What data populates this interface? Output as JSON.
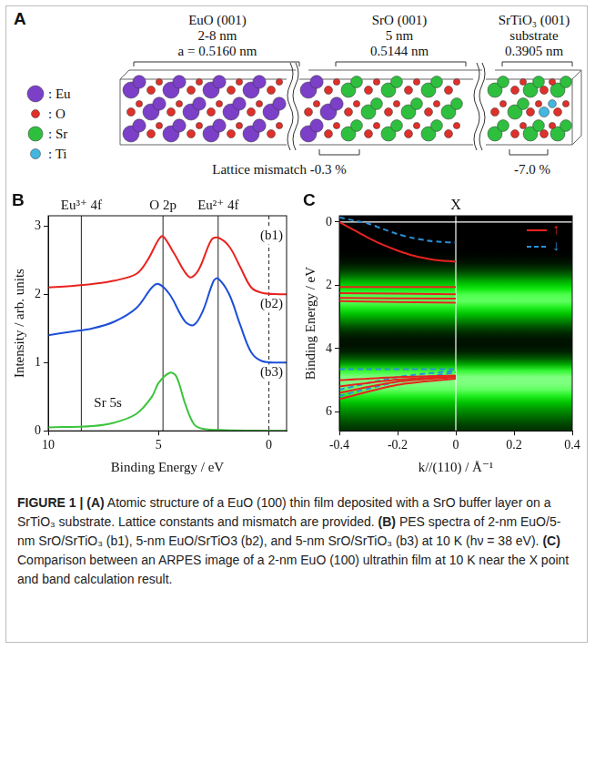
{
  "diagram": {
    "letter": "A",
    "layers": [
      {
        "name": "EuO (001)",
        "thickness": "2-8 nm",
        "lattice": "a = 0.5160 nm"
      },
      {
        "name": "SrO (001)",
        "thickness": "5 nm",
        "lattice": "0.5144 nm"
      },
      {
        "name": "SrTiO₃ (001)",
        "thickness": "substrate",
        "lattice": "0.3905 nm"
      }
    ],
    "atoms": [
      {
        "label": ": Eu",
        "color": "#7b3fc8"
      },
      {
        "label": ": O",
        "color": "#e0302a"
      },
      {
        "label": ": Sr",
        "color": "#2fbf3f"
      },
      {
        "label": ": Ti",
        "color": "#43b7e0"
      }
    ],
    "mismatch": [
      "Lattice mismatch -0.3 %",
      "-7.0 %"
    ]
  },
  "chart_data": [
    {
      "letter": "B",
      "type": "line",
      "x_label": "Binding Energy / eV",
      "y_label": "Intensity / arb. units",
      "xlim": [
        10,
        -0.8
      ],
      "xticks": [
        10,
        5,
        0
      ],
      "ylim": [
        0,
        3.15
      ],
      "yticks": [
        0,
        1,
        2,
        3
      ],
      "grid": false,
      "series": [
        {
          "name": "(b1)",
          "color": "#e8231f",
          "x": [
            10,
            9,
            8,
            7,
            6,
            5.5,
            5,
            4.8,
            4.3,
            3.6,
            3.2,
            2.6,
            2.3,
            1.8,
            1.3,
            0.8,
            0.3,
            -0.5,
            -0.8
          ],
          "values": [
            2.1,
            2.12,
            2.15,
            2.2,
            2.3,
            2.5,
            2.8,
            2.85,
            2.6,
            2.25,
            2.35,
            2.8,
            2.83,
            2.7,
            2.4,
            2.1,
            2.02,
            2.0,
            2.0
          ]
        },
        {
          "name": "(b2)",
          "color": "#1d4fd8",
          "x": [
            10,
            9,
            8,
            7,
            6,
            5.3,
            5,
            4.5,
            3.8,
            3.4,
            3,
            2.5,
            2.3,
            1.8,
            1.3,
            0.8,
            0.3,
            -0.5,
            -0.8
          ],
          "values": [
            1.4,
            1.45,
            1.5,
            1.6,
            1.8,
            2.1,
            2.15,
            2.0,
            1.6,
            1.55,
            1.75,
            2.2,
            2.23,
            2.0,
            1.55,
            1.15,
            1.02,
            1.0,
            1.0
          ]
        },
        {
          "name": "(b3)",
          "color": "#3cc43c",
          "x": [
            10,
            8,
            7,
            6,
            5.3,
            5,
            4.5,
            4.2,
            3.8,
            3.4,
            3,
            2,
            0,
            -0.8
          ],
          "values": [
            0.05,
            0.07,
            0.12,
            0.25,
            0.5,
            0.7,
            0.85,
            0.8,
            0.4,
            0.1,
            0.03,
            0.01,
            0,
            0
          ]
        }
      ],
      "vlines": [
        {
          "x": 8.5,
          "label": "Eu³⁺ 4f"
        },
        {
          "x": 4.8,
          "label": "O 2p"
        },
        {
          "x": 2.3,
          "label": "Eu²⁺ 4f"
        },
        {
          "x": 0,
          "line_style": "dashed"
        }
      ],
      "annotations": [
        {
          "text": "Sr 5s",
          "x": 7.3,
          "y": 0.4
        }
      ]
    },
    {
      "letter": "C",
      "type": "line",
      "title": "X",
      "x_label": "k//(110) / Å⁻¹",
      "y_label": "Binding Energy / eV",
      "xlim": [
        -0.4,
        0.4
      ],
      "xticks": [
        -0.4,
        -0.2,
        0,
        0.2,
        0.4
      ],
      "ylim": [
        6.6,
        -0.2
      ],
      "yticks": [
        0,
        2,
        4,
        6
      ],
      "grid": false,
      "legend": "upper right",
      "vlines": [
        0
      ],
      "hlines": [
        0
      ],
      "image": {
        "energy_edges": [
          0,
          0.2,
          0.4,
          0.6,
          0.8,
          1,
          1.2,
          1.4,
          1.6,
          1.8,
          2,
          2.2,
          2.4,
          2.6,
          2.8,
          3,
          3.2,
          3.4,
          3.6,
          3.8,
          4,
          4.2,
          4.4,
          4.6,
          4.8,
          5,
          5.2,
          5.4,
          5.6,
          5.8,
          6,
          6.2,
          6.4,
          6.6
        ],
        "intensity": [
          0,
          0,
          0,
          0,
          0,
          0.02,
          0.08,
          0.2,
          0.4,
          0.65,
          0.82,
          0.92,
          0.95,
          0.85,
          0.7,
          0.5,
          0.3,
          0.15,
          0.07,
          0.06,
          0.12,
          0.3,
          0.6,
          0.88,
          1,
          1,
          0.95,
          0.85,
          0.7,
          0.55,
          0.42,
          0.3,
          0.2
        ]
      },
      "series": [
        {
          "name": "↑",
          "color": "#e8231f",
          "line_style": "solid",
          "lines": [
            {
              "x": [
                -0.4,
                -0.35,
                -0.3,
                -0.25,
                -0.2,
                -0.15,
                -0.1,
                -0.05,
                0
              ],
              "values": [
                0.0,
                0.25,
                0.5,
                0.72,
                0.9,
                1.05,
                1.15,
                1.22,
                1.25
              ]
            },
            {
              "x": [
                -0.4,
                0
              ],
              "values": [
                2.05,
                2.05
              ]
            },
            {
              "x": [
                -0.4,
                0
              ],
              "values": [
                2.25,
                2.28
              ]
            },
            {
              "x": [
                -0.4,
                0
              ],
              "values": [
                2.4,
                2.42
              ]
            },
            {
              "x": [
                -0.4,
                0
              ],
              "values": [
                2.5,
                2.55
              ]
            },
            {
              "x": [
                -0.4,
                -0.2,
                0
              ],
              "values": [
                5.6,
                5.15,
                4.95
              ]
            },
            {
              "x": [
                -0.4,
                -0.2,
                0
              ],
              "values": [
                5.4,
                5.05,
                4.9
              ]
            },
            {
              "x": [
                -0.4,
                -0.2,
                0
              ],
              "values": [
                5.2,
                4.98,
                4.88
              ]
            },
            {
              "x": [
                -0.4,
                -0.2,
                0
              ],
              "values": [
                5.0,
                4.9,
                4.85
              ]
            }
          ]
        },
        {
          "name": "↓",
          "color": "#2b8fd8",
          "line_style": "dashed",
          "lines": [
            {
              "x": [
                -0.4,
                -0.35,
                -0.3,
                -0.25,
                -0.2,
                -0.15,
                -0.1,
                -0.05,
                0
              ],
              "values": [
                -0.15,
                -0.05,
                0.05,
                0.22,
                0.38,
                0.5,
                0.58,
                0.63,
                0.65
              ]
            },
            {
              "x": [
                -0.4,
                0
              ],
              "values": [
                4.65,
                4.65
              ]
            },
            {
              "x": [
                -0.4,
                -0.2,
                0
              ],
              "values": [
                5.5,
                5.05,
                4.75
              ]
            },
            {
              "x": [
                -0.4,
                -0.2,
                0
              ],
              "values": [
                5.3,
                4.9,
                4.7
              ]
            }
          ]
        }
      ]
    }
  ],
  "caption": [
    {
      "text": "FIGURE 1 | (A)",
      "bold": true
    },
    {
      "text": " Atomic structure of a EuO (100) thin film deposited with a SrO buffer layer on a SrTiO₃ substrate. Lattice constants and mismatch are provided. "
    },
    {
      "text": "(B)",
      "bold": true
    },
    {
      "text": " PES spectra of 2-nm EuO/5-nm SrO/SrTiO₃ (b1), 5-nm EuO/SrTiO3 (b2), and 5-nm SrO/SrTiO₃ (b3) at 10 K (hν = 38 eV). "
    },
    {
      "text": "(C)",
      "bold": true
    },
    {
      "text": " Comparison between an ARPES image of a 2-nm EuO (100) ultrathin film at 10 K near the X point and band calculation result."
    }
  ]
}
